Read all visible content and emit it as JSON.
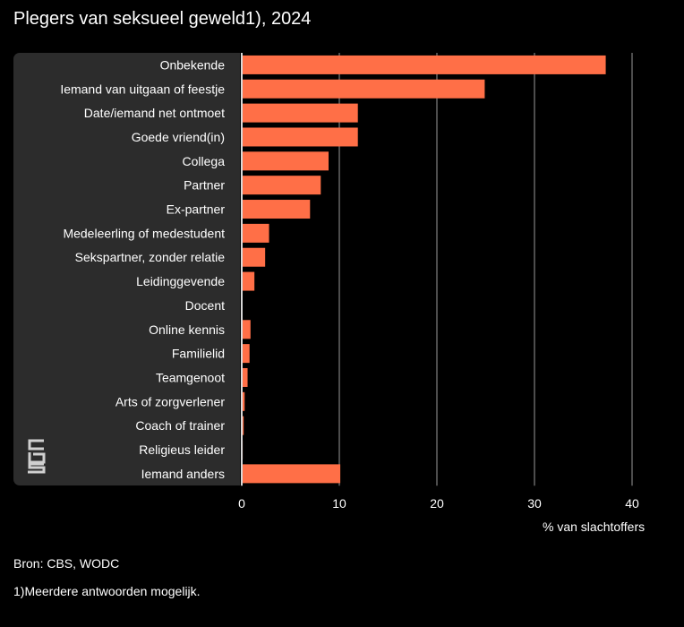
{
  "title": "Plegers van seksueel geweld1), 2024",
  "unit_label": "% van slachtoffers",
  "source": "Bron: CBS, WODC",
  "footnote": "1)Meerdere antwoorden mogelijk.",
  "logo": "cbs-logo",
  "colors": {
    "bar": "#ff6f47",
    "panel": "#2c2c2c",
    "grid": "#9a9a9a",
    "background": "#000000"
  },
  "chart_data": {
    "type": "bar",
    "orientation": "horizontal",
    "categories": [
      "Onbekende",
      "Iemand van uitgaan of feestje",
      "Date/iemand net ontmoet",
      "Goede vriend(in)",
      "Collega",
      "Partner",
      "Ex-partner",
      "Medeleerling of medestudent",
      "Sekspartner, zonder relatie",
      "Leidinggevende",
      "Docent",
      "Online kennis",
      "Familielid",
      "Teamgenoot",
      "Arts of zorgverlener",
      "Coach of trainer",
      "Religieus leider",
      "Iemand anders"
    ],
    "values": [
      37.3,
      24.9,
      11.9,
      11.9,
      8.9,
      8.1,
      7.0,
      2.8,
      2.4,
      1.3,
      0.0,
      0.9,
      0.8,
      0.6,
      0.3,
      0.2,
      0.1,
      10.1
    ],
    "xlabel": "% van slachtoffers",
    "ylabel": "",
    "xlim": [
      0,
      40
    ],
    "xticks": [
      0,
      10,
      20,
      30,
      40
    ],
    "grid": "vertical"
  }
}
